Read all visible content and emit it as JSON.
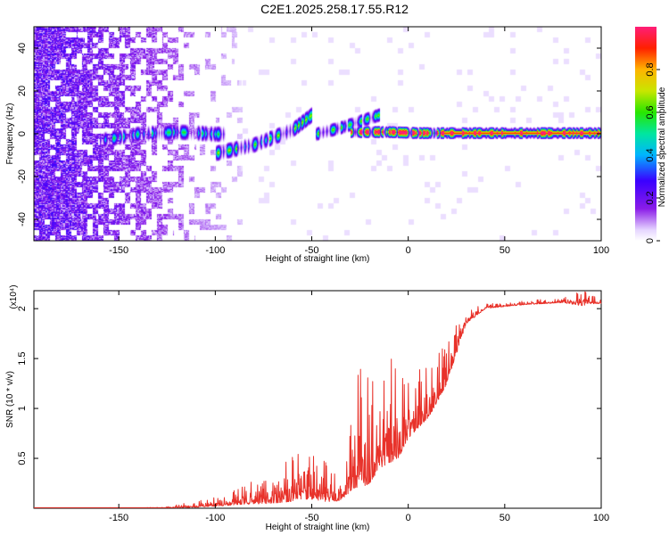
{
  "title": "C2E1.2025.258.17.55.R12",
  "colors": {
    "snr_line": "#e8322a",
    "axes": "#000000"
  },
  "chart_data": [
    {
      "type": "heatmap",
      "xlabel": "Height of straight line (km)",
      "ylabel": "Frequency (Hz)",
      "xlim": [
        -194,
        100
      ],
      "ylim": [
        -50,
        50
      ],
      "xticks": [
        -150,
        -100,
        -50,
        0,
        50,
        100
      ],
      "yticks": [
        -40,
        -20,
        0,
        20,
        40
      ],
      "ridges": [
        {
          "x": [
            -160,
            -140,
            -120,
            -100,
            -95
          ],
          "y": [
            -3,
            0,
            1,
            0,
            0
          ],
          "width": 3.5,
          "intensity": 0.32
        },
        {
          "x": [
            -100,
            -80,
            -60,
            -50
          ],
          "y": [
            -9,
            -5,
            2,
            9
          ],
          "width": 3.5,
          "intensity": 0.38
        },
        {
          "x": [
            -48,
            -35,
            -25,
            -15
          ],
          "y": [
            0,
            3,
            6,
            9
          ],
          "width": 3,
          "intensity": 0.36
        },
        {
          "x": [
            -30,
            -10,
            5,
            20,
            100
          ],
          "y": [
            1,
            1,
            0.5,
            0.5,
            0.5
          ],
          "width": 2.5,
          "intensity": 0.7
        }
      ],
      "colorbar": {
        "label": "Normalized spectral amplitude",
        "ticks": [
          0.0,
          0.2,
          0.4,
          0.6,
          0.8
        ],
        "stops": [
          {
            "v": 0.0,
            "c": "#ffffff"
          },
          {
            "v": 0.05,
            "c": "#e6d6ff"
          },
          {
            "v": 0.15,
            "c": "#8a1ce8"
          },
          {
            "v": 0.28,
            "c": "#3a00ff"
          },
          {
            "v": 0.4,
            "c": "#00b4ff"
          },
          {
            "v": 0.5,
            "c": "#00e6a0"
          },
          {
            "v": 0.6,
            "c": "#28e600"
          },
          {
            "v": 0.7,
            "c": "#c8e600"
          },
          {
            "v": 0.8,
            "c": "#ffb400"
          },
          {
            "v": 0.9,
            "c": "#ff2000"
          },
          {
            "v": 1.0,
            "c": "#ff1e78"
          }
        ]
      }
    },
    {
      "type": "line",
      "xlabel": "Height of straight line (km)",
      "ylabel": "SNR (10 * v/v)",
      "yexponent": "(x10⁴)",
      "xlim": [
        -194,
        100
      ],
      "ylim": [
        0,
        2.18
      ],
      "xticks": [
        -150,
        -100,
        -50,
        0,
        50,
        100
      ],
      "yticks": [
        0.5,
        1.0,
        1.5,
        2.0
      ],
      "envelope": {
        "x": [
          -194,
          -130,
          -110,
          -100,
          -85,
          -70,
          -60,
          -50,
          -40,
          -35,
          -28,
          -25,
          -20,
          -15,
          -10,
          -5,
          0,
          5,
          10,
          15,
          20,
          25,
          30,
          40,
          60,
          80,
          90,
          95,
          100
        ],
        "base": [
          0.0,
          0.0,
          0.01,
          0.02,
          0.04,
          0.05,
          0.07,
          0.09,
          0.06,
          0.08,
          0.2,
          0.2,
          0.25,
          0.4,
          0.45,
          0.5,
          0.7,
          0.8,
          0.9,
          1.05,
          1.25,
          1.55,
          1.85,
          2.0,
          2.04,
          2.06,
          2.03,
          2.05,
          2.05
        ],
        "amp": [
          0.0,
          0.01,
          0.06,
          0.1,
          0.2,
          0.35,
          0.45,
          0.55,
          0.35,
          0.25,
          0.9,
          1.8,
          1.2,
          1.0,
          1.1,
          0.85,
          0.7,
          0.65,
          0.6,
          0.5,
          0.4,
          0.3,
          0.15,
          0.05,
          0.04,
          0.05,
          0.15,
          0.1,
          0.04
        ]
      }
    }
  ]
}
